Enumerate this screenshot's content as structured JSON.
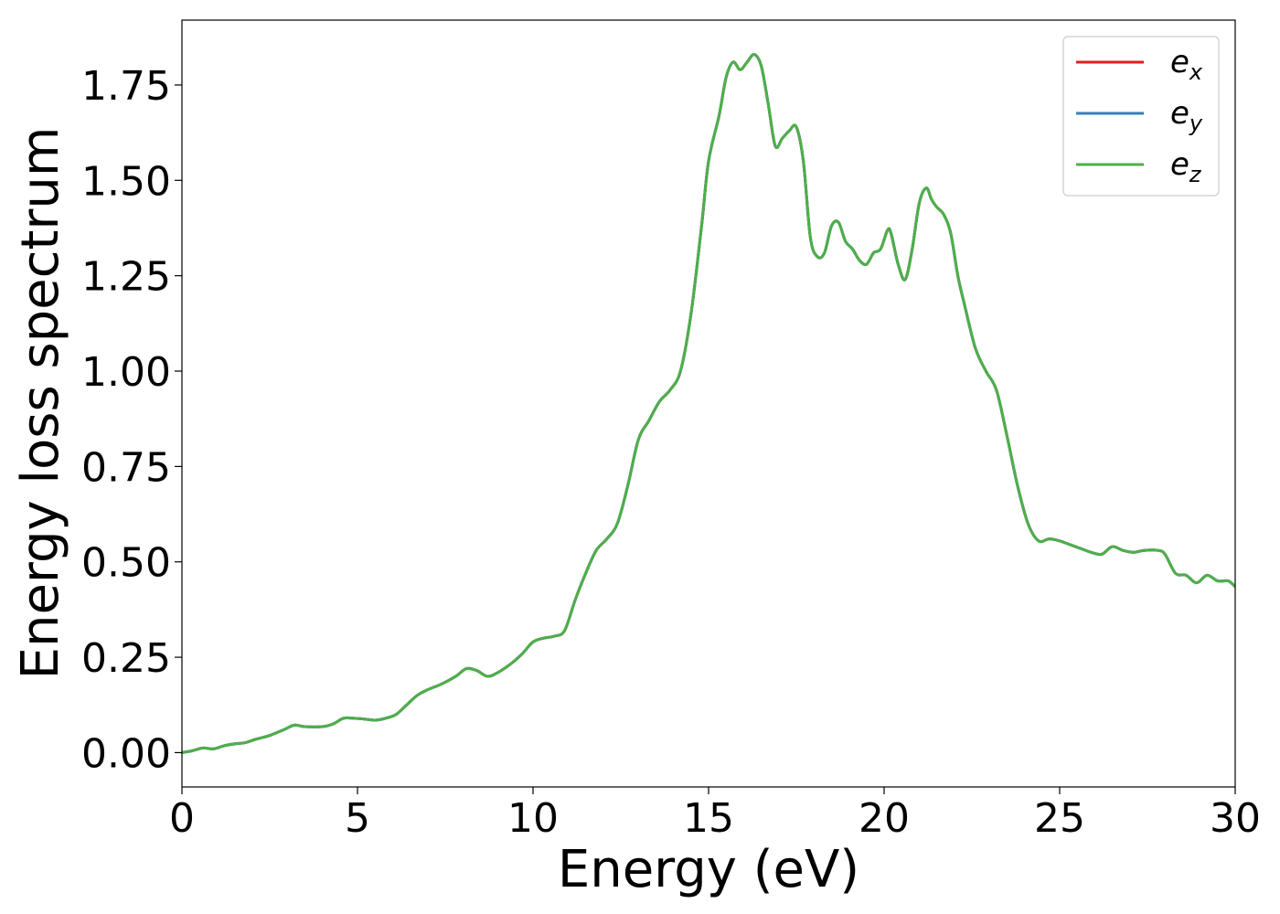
{
  "chart_data": {
    "type": "line",
    "title": "",
    "xlabel": "Energy (eV)",
    "ylabel": "Energy loss spectrum",
    "xlim": [
      0,
      30
    ],
    "ylim": [
      -0.09,
      1.92
    ],
    "x_ticks": [
      0,
      5,
      10,
      15,
      20,
      25,
      30
    ],
    "x_tick_labels": [
      "0",
      "5",
      "10",
      "15",
      "20",
      "25",
      "30"
    ],
    "y_ticks": [
      0.0,
      0.25,
      0.5,
      0.75,
      1.0,
      1.25,
      1.5,
      1.75
    ],
    "y_tick_labels": [
      "0.00",
      "0.25",
      "0.50",
      "0.75",
      "1.00",
      "1.25",
      "1.50",
      "1.75"
    ],
    "grid": false,
    "legend_position": "top-right",
    "series": [
      {
        "name": "e",
        "subscript": "x",
        "color": "#e41a1c"
      },
      {
        "name": "e",
        "subscript": "y",
        "color": "#377eb8"
      },
      {
        "name": "e",
        "subscript": "z",
        "color": "#4daf4a"
      }
    ],
    "x": [
      0,
      0.3,
      0.6,
      0.9,
      1.2,
      1.5,
      1.8,
      2.1,
      2.5,
      2.9,
      3.2,
      3.5,
      4.0,
      4.3,
      4.6,
      4.9,
      5.2,
      5.5,
      5.8,
      6.1,
      6.4,
      6.7,
      7.0,
      7.4,
      7.8,
      8.1,
      8.4,
      8.7,
      9.0,
      9.4,
      9.7,
      10.0,
      10.3,
      10.6,
      10.9,
      11.2,
      11.5,
      11.8,
      12.1,
      12.4,
      12.7,
      13.0,
      13.3,
      13.6,
      13.9,
      14.2,
      14.5,
      14.8,
      15.0,
      15.3,
      15.5,
      15.7,
      15.9,
      16.1,
      16.3,
      16.5,
      16.7,
      16.9,
      17.1,
      17.3,
      17.5,
      17.7,
      17.9,
      18.1,
      18.3,
      18.5,
      18.7,
      18.9,
      19.1,
      19.3,
      19.5,
      19.7,
      19.9,
      20.1,
      20.2,
      20.4,
      20.6,
      20.8,
      21.0,
      21.2,
      21.35,
      21.5,
      21.7,
      21.9,
      22.1,
      22.3,
      22.6,
      22.9,
      23.2,
      23.5,
      23.8,
      24.1,
      24.4,
      24.7,
      25.0,
      25.3,
      25.6,
      25.9,
      26.2,
      26.5,
      26.8,
      27.1,
      27.4,
      27.8,
      28.0,
      28.3,
      28.6,
      28.9,
      29.2,
      29.5,
      29.8,
      30.0
    ],
    "values": [
      0.0,
      0.005,
      0.012,
      0.01,
      0.018,
      0.023,
      0.026,
      0.035,
      0.045,
      0.06,
      0.072,
      0.068,
      0.068,
      0.075,
      0.09,
      0.09,
      0.088,
      0.085,
      0.09,
      0.1,
      0.125,
      0.15,
      0.165,
      0.18,
      0.2,
      0.22,
      0.215,
      0.2,
      0.21,
      0.235,
      0.26,
      0.29,
      0.3,
      0.305,
      0.32,
      0.4,
      0.47,
      0.53,
      0.56,
      0.6,
      0.7,
      0.82,
      0.87,
      0.92,
      0.95,
      1.0,
      1.15,
      1.38,
      1.55,
      1.67,
      1.77,
      1.81,
      1.79,
      1.81,
      1.83,
      1.8,
      1.7,
      1.59,
      1.61,
      1.63,
      1.64,
      1.55,
      1.35,
      1.3,
      1.31,
      1.38,
      1.39,
      1.34,
      1.32,
      1.29,
      1.28,
      1.31,
      1.32,
      1.37,
      1.36,
      1.28,
      1.24,
      1.32,
      1.44,
      1.48,
      1.45,
      1.43,
      1.41,
      1.36,
      1.25,
      1.17,
      1.06,
      1.0,
      0.95,
      0.83,
      0.7,
      0.6,
      0.555,
      0.56,
      0.555,
      0.545,
      0.535,
      0.525,
      0.52,
      0.54,
      0.53,
      0.525,
      0.53,
      0.53,
      0.52,
      0.47,
      0.465,
      0.445,
      0.465,
      0.45,
      0.45,
      0.435
    ]
  }
}
